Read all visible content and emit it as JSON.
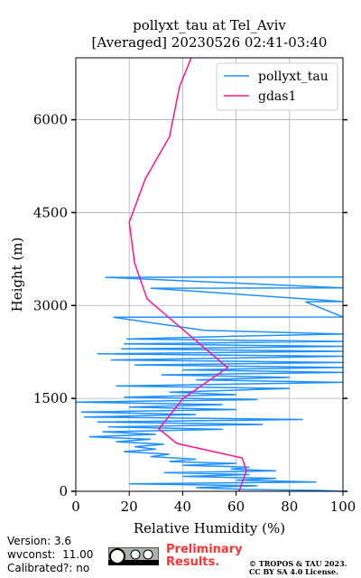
{
  "chart_data": {
    "type": "line",
    "title": "pollyxt_tau at Tel_Aviv",
    "subtitle": "[Averaged] 20230526 02:41-03:40",
    "x_label": "Relative Humidity (%)",
    "y_label": "Height (m)",
    "xlim": [
      0,
      100
    ],
    "xticks": [
      0,
      20,
      40,
      60,
      80,
      100
    ],
    "ylim": [
      0,
      7000
    ],
    "yticks": [
      0,
      1500,
      3000,
      4500,
      6000
    ],
    "grid": true,
    "legend": "upper right",
    "series": [
      {
        "name": "pollyxt_tau",
        "color": "#1e90ff",
        "y": [
          0,
          15,
          30,
          60,
          90,
          120,
          150,
          180,
          210,
          240,
          270,
          300,
          330,
          360,
          390,
          420,
          450,
          480,
          520,
          560,
          600,
          640,
          680,
          720,
          760,
          800,
          840,
          880,
          920,
          960,
          1000,
          1040,
          1080,
          1120,
          1160,
          1200,
          1240,
          1280,
          1320,
          1360,
          1400,
          1440,
          1480,
          1520,
          1560,
          1600,
          1660,
          1700,
          1760,
          1800,
          1840,
          1880,
          1920,
          1960,
          2000,
          2040,
          2080,
          2120,
          2180,
          2220,
          2260,
          2300,
          2340,
          2380,
          2420,
          2460,
          2500,
          2540,
          2600,
          2810,
          2815,
          3060,
          3065,
          3280,
          3285,
          3455,
          3460
        ],
        "values": [
          100,
          91,
          63,
          45,
          68,
          20,
          90,
          60,
          75,
          40,
          65,
          33,
          75,
          58,
          65,
          40,
          60,
          35,
          45,
          28,
          35,
          18,
          30,
          22,
          33,
          15,
          28,
          5,
          30,
          10,
          55,
          12,
          70,
          8,
          85,
          3,
          45,
          2,
          60,
          20,
          55,
          0,
          68,
          18,
          60,
          35,
          80,
          15,
          100,
          45,
          80,
          32,
          100,
          40,
          100,
          22,
          100,
          13,
          100,
          8,
          100,
          17,
          100,
          18,
          100,
          19,
          55,
          100,
          48,
          14,
          100,
          86,
          100,
          28,
          100,
          11,
          100
        ]
      },
      {
        "name": "gdas1",
        "color": "#ff1493",
        "y": [
          7000,
          6530,
          5729,
          5044,
          4344,
          3688,
          3105,
          1997,
          1501,
          1006,
          773,
          539,
          335,
          0
        ],
        "values": [
          43.2,
          38.8,
          35.1,
          26.0,
          20.0,
          22.0,
          26.7,
          56.8,
          40.2,
          31.1,
          37.8,
          62.2,
          63.9,
          61.1
        ]
      }
    ]
  },
  "footer": {
    "version": "Version: 3.6",
    "wvconst": "wvconst:  11.00",
    "calibrated": "Calibrated?: no",
    "preliminary": "Preliminary Results.",
    "copyright": "© TROPOS & TAU 2023.",
    "license": "CC BY SA 4.0 License."
  }
}
